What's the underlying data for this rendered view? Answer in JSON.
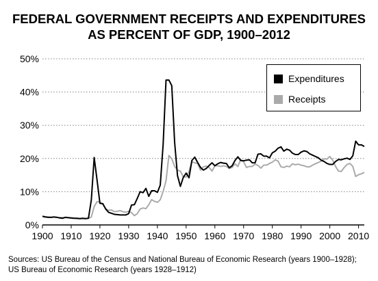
{
  "chart_data": {
    "type": "line",
    "title_line1": "FEDERAL GOVERNMENT RECEIPTS AND EXPENDITURES",
    "title_line2": "AS PERCENT OF GDP, 1900–2012",
    "xlabel": "",
    "ylabel": "",
    "xlim": [
      1900,
      2012
    ],
    "ylim": [
      0,
      50
    ],
    "x_ticks": [
      1900,
      1910,
      1920,
      1930,
      1940,
      1950,
      1960,
      1970,
      1980,
      1990,
      2000,
      2010
    ],
    "y_ticks": [
      0,
      10,
      20,
      30,
      40,
      50
    ],
    "y_tick_labels": [
      "0%",
      "10%",
      "20%",
      "30%",
      "40%",
      "50%"
    ],
    "grid": "horizontal dotted",
    "legend_position": "top-right",
    "series": [
      {
        "name": "Expenditures",
        "color": "#000000",
        "points": [
          [
            1900,
            2.6
          ],
          [
            1901,
            2.4
          ],
          [
            1902,
            2.3
          ],
          [
            1903,
            2.3
          ],
          [
            1904,
            2.4
          ],
          [
            1905,
            2.3
          ],
          [
            1906,
            2.1
          ],
          [
            1907,
            2.0
          ],
          [
            1908,
            2.3
          ],
          [
            1909,
            2.2
          ],
          [
            1910,
            2.1
          ],
          [
            1911,
            2.0
          ],
          [
            1912,
            2.0
          ],
          [
            1913,
            1.9
          ],
          [
            1914,
            2.0
          ],
          [
            1915,
            1.9
          ],
          [
            1916,
            2.0
          ],
          [
            1917,
            7.5
          ],
          [
            1918,
            20.3
          ],
          [
            1919,
            13.5
          ],
          [
            1920,
            6.5
          ],
          [
            1921,
            6.4
          ],
          [
            1922,
            4.8
          ],
          [
            1923,
            3.8
          ],
          [
            1924,
            3.5
          ],
          [
            1925,
            3.2
          ],
          [
            1926,
            3.1
          ],
          [
            1927,
            3.0
          ],
          [
            1928,
            3.0
          ],
          [
            1929,
            3.0
          ],
          [
            1930,
            3.4
          ],
          [
            1931,
            6.0
          ],
          [
            1932,
            6.1
          ],
          [
            1933,
            8.0
          ],
          [
            1934,
            10.0
          ],
          [
            1935,
            9.7
          ],
          [
            1936,
            11.0
          ],
          [
            1937,
            8.6
          ],
          [
            1938,
            10.3
          ],
          [
            1939,
            10.3
          ],
          [
            1940,
            9.8
          ],
          [
            1941,
            12.0
          ],
          [
            1942,
            24.3
          ],
          [
            1943,
            43.6
          ],
          [
            1944,
            43.6
          ],
          [
            1945,
            41.9
          ],
          [
            1946,
            24.8
          ],
          [
            1947,
            14.8
          ],
          [
            1948,
            11.6
          ],
          [
            1949,
            14.3
          ],
          [
            1950,
            15.6
          ],
          [
            1951,
            14.2
          ],
          [
            1952,
            19.4
          ],
          [
            1953,
            20.4
          ],
          [
            1954,
            18.8
          ],
          [
            1955,
            17.3
          ],
          [
            1956,
            16.5
          ],
          [
            1957,
            17.0
          ],
          [
            1958,
            17.9
          ],
          [
            1959,
            18.7
          ],
          [
            1960,
            17.8
          ],
          [
            1961,
            18.4
          ],
          [
            1962,
            18.8
          ],
          [
            1963,
            18.6
          ],
          [
            1964,
            18.5
          ],
          [
            1965,
            17.2
          ],
          [
            1966,
            17.8
          ],
          [
            1967,
            19.4
          ],
          [
            1968,
            20.5
          ],
          [
            1969,
            19.4
          ],
          [
            1970,
            19.3
          ],
          [
            1971,
            19.5
          ],
          [
            1972,
            19.6
          ],
          [
            1973,
            18.7
          ],
          [
            1974,
            18.7
          ],
          [
            1975,
            21.3
          ],
          [
            1976,
            21.4
          ],
          [
            1977,
            20.7
          ],
          [
            1978,
            20.7
          ],
          [
            1979,
            20.2
          ],
          [
            1980,
            21.7
          ],
          [
            1981,
            22.2
          ],
          [
            1982,
            23.1
          ],
          [
            1983,
            23.5
          ],
          [
            1984,
            22.2
          ],
          [
            1985,
            22.8
          ],
          [
            1986,
            22.5
          ],
          [
            1987,
            21.6
          ],
          [
            1988,
            21.2
          ],
          [
            1989,
            21.2
          ],
          [
            1990,
            21.9
          ],
          [
            1991,
            22.3
          ],
          [
            1992,
            22.1
          ],
          [
            1993,
            21.4
          ],
          [
            1994,
            21.0
          ],
          [
            1995,
            20.6
          ],
          [
            1996,
            20.2
          ],
          [
            1997,
            19.5
          ],
          [
            1998,
            19.1
          ],
          [
            1999,
            18.5
          ],
          [
            2000,
            18.2
          ],
          [
            2001,
            18.2
          ],
          [
            2002,
            19.1
          ],
          [
            2003,
            19.7
          ],
          [
            2004,
            19.6
          ],
          [
            2005,
            19.9
          ],
          [
            2006,
            20.1
          ],
          [
            2007,
            19.7
          ],
          [
            2008,
            20.8
          ],
          [
            2009,
            25.2
          ],
          [
            2010,
            24.1
          ],
          [
            2011,
            24.1
          ],
          [
            2012,
            23.6
          ]
        ]
      },
      {
        "name": "Receipts",
        "color": "#aaaaaa",
        "points": [
          [
            1900,
            2.6
          ],
          [
            1901,
            2.5
          ],
          [
            1902,
            2.4
          ],
          [
            1903,
            2.3
          ],
          [
            1904,
            2.4
          ],
          [
            1905,
            2.3
          ],
          [
            1906,
            2.2
          ],
          [
            1907,
            2.2
          ],
          [
            1908,
            2.2
          ],
          [
            1909,
            2.1
          ],
          [
            1910,
            2.0
          ],
          [
            1911,
            2.0
          ],
          [
            1912,
            1.9
          ],
          [
            1913,
            1.9
          ],
          [
            1914,
            1.9
          ],
          [
            1915,
            1.9
          ],
          [
            1916,
            2.0
          ],
          [
            1917,
            2.4
          ],
          [
            1918,
            5.5
          ],
          [
            1919,
            7.0
          ],
          [
            1920,
            6.9
          ],
          [
            1921,
            6.2
          ],
          [
            1922,
            4.9
          ],
          [
            1923,
            4.4
          ],
          [
            1924,
            4.5
          ],
          [
            1925,
            4.0
          ],
          [
            1926,
            4.1
          ],
          [
            1927,
            4.3
          ],
          [
            1928,
            4.0
          ],
          [
            1929,
            3.8
          ],
          [
            1930,
            4.1
          ],
          [
            1931,
            3.7
          ],
          [
            1932,
            2.8
          ],
          [
            1933,
            3.4
          ],
          [
            1934,
            4.8
          ],
          [
            1935,
            5.1
          ],
          [
            1936,
            4.9
          ],
          [
            1937,
            6.1
          ],
          [
            1938,
            7.6
          ],
          [
            1939,
            7.1
          ],
          [
            1940,
            6.8
          ],
          [
            1941,
            7.6
          ],
          [
            1942,
            10.1
          ],
          [
            1943,
            13.3
          ],
          [
            1944,
            20.9
          ],
          [
            1945,
            19.9
          ],
          [
            1946,
            17.6
          ],
          [
            1947,
            16.5
          ],
          [
            1948,
            16.2
          ],
          [
            1949,
            14.5
          ],
          [
            1950,
            14.4
          ],
          [
            1951,
            16.1
          ],
          [
            1952,
            19.0
          ],
          [
            1953,
            18.7
          ],
          [
            1954,
            18.5
          ],
          [
            1955,
            16.5
          ],
          [
            1956,
            17.5
          ],
          [
            1957,
            17.7
          ],
          [
            1958,
            17.3
          ],
          [
            1959,
            16.2
          ],
          [
            1960,
            17.8
          ],
          [
            1961,
            17.8
          ],
          [
            1962,
            17.6
          ],
          [
            1963,
            17.8
          ],
          [
            1964,
            17.6
          ],
          [
            1965,
            17.0
          ],
          [
            1966,
            17.3
          ],
          [
            1967,
            18.4
          ],
          [
            1968,
            17.6
          ],
          [
            1969,
            19.7
          ],
          [
            1970,
            19.0
          ],
          [
            1971,
            17.3
          ],
          [
            1972,
            17.6
          ],
          [
            1973,
            17.6
          ],
          [
            1974,
            18.3
          ],
          [
            1975,
            17.9
          ],
          [
            1976,
            17.1
          ],
          [
            1977,
            18.0
          ],
          [
            1978,
            18.0
          ],
          [
            1979,
            18.5
          ],
          [
            1980,
            18.9
          ],
          [
            1981,
            19.6
          ],
          [
            1982,
            19.2
          ],
          [
            1983,
            17.5
          ],
          [
            1984,
            17.3
          ],
          [
            1985,
            17.7
          ],
          [
            1986,
            17.5
          ],
          [
            1987,
            18.4
          ],
          [
            1988,
            18.1
          ],
          [
            1989,
            18.3
          ],
          [
            1990,
            18.0
          ],
          [
            1991,
            17.8
          ],
          [
            1992,
            17.5
          ],
          [
            1993,
            17.5
          ],
          [
            1994,
            18.0
          ],
          [
            1995,
            18.4
          ],
          [
            1996,
            18.8
          ],
          [
            1997,
            19.2
          ],
          [
            1998,
            19.9
          ],
          [
            1999,
            19.8
          ],
          [
            2000,
            20.6
          ],
          [
            2001,
            19.5
          ],
          [
            2002,
            17.6
          ],
          [
            2003,
            16.2
          ],
          [
            2004,
            16.1
          ],
          [
            2005,
            17.3
          ],
          [
            2006,
            18.2
          ],
          [
            2007,
            18.5
          ],
          [
            2008,
            17.6
          ],
          [
            2009,
            14.6
          ],
          [
            2010,
            15.1
          ],
          [
            2011,
            15.4
          ],
          [
            2012,
            15.8
          ]
        ]
      }
    ]
  },
  "source_line1": "Sources: US Bureau of the Census and National Bureau of Economic Research (years 1900–1928);",
  "source_line2": "US Bureau of Economic Research (years 1928–1912)"
}
